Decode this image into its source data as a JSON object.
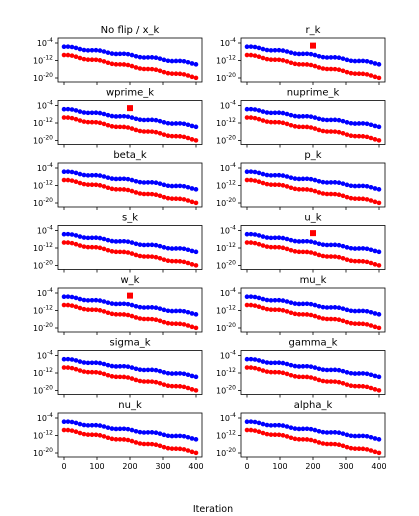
{
  "figure": {
    "xlabel": "Iteration"
  },
  "chart_data": [
    {
      "type": "scatter",
      "title": "No flip / x_k",
      "xlim": [
        0,
        400
      ],
      "ylim": [
        -20,
        -4
      ],
      "yscale": "log10",
      "yticks": [
        "10^-4",
        "10^-12",
        "10^-20"
      ],
      "xticks": [
        "0",
        "100",
        "200",
        "300",
        "400"
      ],
      "series": [
        {
          "color": "#0000ff",
          "x_range": [
            0,
            400
          ],
          "y_log10_range": [
            -5.7,
            -13.4
          ]
        },
        {
          "color": "#ff0000",
          "x_range": [
            0,
            400
          ],
          "y_log10_range": [
            -9.5,
            -19.6
          ]
        }
      ],
      "outlier": null
    },
    {
      "type": "scatter",
      "title": "r_k",
      "xlim": [
        0,
        400
      ],
      "ylim": [
        -20,
        -4
      ],
      "yscale": "log10",
      "yticks": [
        "10^-4",
        "10^-12",
        "10^-20"
      ],
      "xticks": [
        "0",
        "100",
        "200",
        "300",
        "400"
      ],
      "series": [
        {
          "color": "#0000ff",
          "x_range": [
            0,
            400
          ],
          "y_log10_range": [
            -5.7,
            -13.4
          ]
        },
        {
          "color": "#ff0000",
          "x_range": [
            0,
            400
          ],
          "y_log10_range": [
            -9.5,
            -19.6
          ]
        }
      ],
      "outlier": {
        "x": 200,
        "y_log10": -5.2,
        "color": "#ff0000"
      }
    },
    {
      "type": "scatter",
      "title": "wprime_k",
      "xlim": [
        0,
        400
      ],
      "ylim": [
        -20,
        -4
      ],
      "yscale": "log10",
      "yticks": [
        "10^-4",
        "10^-12",
        "10^-20"
      ],
      "xticks": [
        "0",
        "100",
        "200",
        "300",
        "400"
      ],
      "series": [
        {
          "color": "#0000ff",
          "x_range": [
            0,
            400
          ],
          "y_log10_range": [
            -5.7,
            -13.4
          ]
        },
        {
          "color": "#ff0000",
          "x_range": [
            0,
            400
          ],
          "y_log10_range": [
            -9.5,
            -19.6
          ]
        }
      ],
      "outlier": {
        "x": 200,
        "y_log10": -5.2,
        "color": "#ff0000"
      }
    },
    {
      "type": "scatter",
      "title": "nuprime_k",
      "xlim": [
        0,
        400
      ],
      "ylim": [
        -20,
        -4
      ],
      "yscale": "log10",
      "yticks": [
        "10^-4",
        "10^-12",
        "10^-20"
      ],
      "xticks": [
        "0",
        "100",
        "200",
        "300",
        "400"
      ],
      "series": [
        {
          "color": "#0000ff",
          "x_range": [
            0,
            400
          ],
          "y_log10_range": [
            -5.7,
            -13.4
          ]
        },
        {
          "color": "#ff0000",
          "x_range": [
            0,
            400
          ],
          "y_log10_range": [
            -9.5,
            -19.6
          ]
        }
      ],
      "outlier": null
    },
    {
      "type": "scatter",
      "title": "beta_k",
      "xlim": [
        0,
        400
      ],
      "ylim": [
        -20,
        -4
      ],
      "yscale": "log10",
      "yticks": [
        "10^-4",
        "10^-12",
        "10^-20"
      ],
      "xticks": [
        "0",
        "100",
        "200",
        "300",
        "400"
      ],
      "series": [
        {
          "color": "#0000ff",
          "x_range": [
            0,
            400
          ],
          "y_log10_range": [
            -5.7,
            -13.4
          ]
        },
        {
          "color": "#ff0000",
          "x_range": [
            0,
            400
          ],
          "y_log10_range": [
            -9.5,
            -19.6
          ]
        }
      ],
      "outlier": null
    },
    {
      "type": "scatter",
      "title": "p_k",
      "xlim": [
        0,
        400
      ],
      "ylim": [
        -20,
        -4
      ],
      "yscale": "log10",
      "yticks": [
        "10^-4",
        "10^-12",
        "10^-20"
      ],
      "xticks": [
        "0",
        "100",
        "200",
        "300",
        "400"
      ],
      "series": [
        {
          "color": "#0000ff",
          "x_range": [
            0,
            400
          ],
          "y_log10_range": [
            -5.7,
            -13.4
          ]
        },
        {
          "color": "#ff0000",
          "x_range": [
            0,
            400
          ],
          "y_log10_range": [
            -9.5,
            -19.6
          ]
        }
      ],
      "outlier": null
    },
    {
      "type": "scatter",
      "title": "s_k",
      "xlim": [
        0,
        400
      ],
      "ylim": [
        -20,
        -4
      ],
      "yscale": "log10",
      "yticks": [
        "10^-4",
        "10^-12",
        "10^-20"
      ],
      "xticks": [
        "0",
        "100",
        "200",
        "300",
        "400"
      ],
      "series": [
        {
          "color": "#0000ff",
          "x_range": [
            0,
            400
          ],
          "y_log10_range": [
            -5.7,
            -13.4
          ]
        },
        {
          "color": "#ff0000",
          "x_range": [
            0,
            400
          ],
          "y_log10_range": [
            -9.5,
            -19.6
          ]
        }
      ],
      "outlier": null
    },
    {
      "type": "scatter",
      "title": "u_k",
      "xlim": [
        0,
        400
      ],
      "ylim": [
        -20,
        -4
      ],
      "yscale": "log10",
      "yticks": [
        "10^-4",
        "10^-12",
        "10^-20"
      ],
      "xticks": [
        "0",
        "100",
        "200",
        "300",
        "400"
      ],
      "series": [
        {
          "color": "#0000ff",
          "x_range": [
            0,
            400
          ],
          "y_log10_range": [
            -5.7,
            -13.4
          ]
        },
        {
          "color": "#ff0000",
          "x_range": [
            0,
            400
          ],
          "y_log10_range": [
            -9.5,
            -19.6
          ]
        }
      ],
      "outlier": {
        "x": 200,
        "y_log10": -5.2,
        "color": "#ff0000"
      }
    },
    {
      "type": "scatter",
      "title": "w_k",
      "xlim": [
        0,
        400
      ],
      "ylim": [
        -20,
        -4
      ],
      "yscale": "log10",
      "yticks": [
        "10^-4",
        "10^-12",
        "10^-20"
      ],
      "xticks": [
        "0",
        "100",
        "200",
        "300",
        "400"
      ],
      "series": [
        {
          "color": "#0000ff",
          "x_range": [
            0,
            400
          ],
          "y_log10_range": [
            -5.7,
            -13.4
          ]
        },
        {
          "color": "#ff0000",
          "x_range": [
            0,
            400
          ],
          "y_log10_range": [
            -9.5,
            -19.6
          ]
        }
      ],
      "outlier": {
        "x": 200,
        "y_log10": -5.2,
        "color": "#ff0000"
      }
    },
    {
      "type": "scatter",
      "title": "mu_k",
      "xlim": [
        0,
        400
      ],
      "ylim": [
        -20,
        -4
      ],
      "yscale": "log10",
      "yticks": [
        "10^-4",
        "10^-12",
        "10^-20"
      ],
      "xticks": [
        "0",
        "100",
        "200",
        "300",
        "400"
      ],
      "series": [
        {
          "color": "#0000ff",
          "x_range": [
            0,
            400
          ],
          "y_log10_range": [
            -5.7,
            -13.4
          ]
        },
        {
          "color": "#ff0000",
          "x_range": [
            0,
            400
          ],
          "y_log10_range": [
            -9.5,
            -19.6
          ]
        }
      ],
      "outlier": null
    },
    {
      "type": "scatter",
      "title": "sigma_k",
      "xlim": [
        0,
        400
      ],
      "ylim": [
        -20,
        -4
      ],
      "yscale": "log10",
      "yticks": [
        "10^-4",
        "10^-12",
        "10^-20"
      ],
      "xticks": [
        "0",
        "100",
        "200",
        "300",
        "400"
      ],
      "series": [
        {
          "color": "#0000ff",
          "x_range": [
            0,
            400
          ],
          "y_log10_range": [
            -5.7,
            -13.4
          ]
        },
        {
          "color": "#ff0000",
          "x_range": [
            0,
            400
          ],
          "y_log10_range": [
            -9.5,
            -19.6
          ]
        }
      ],
      "outlier": null
    },
    {
      "type": "scatter",
      "title": "gamma_k",
      "xlim": [
        0,
        400
      ],
      "ylim": [
        -20,
        -4
      ],
      "yscale": "log10",
      "yticks": [
        "10^-4",
        "10^-12",
        "10^-20"
      ],
      "xticks": [
        "0",
        "100",
        "200",
        "300",
        "400"
      ],
      "series": [
        {
          "color": "#0000ff",
          "x_range": [
            0,
            400
          ],
          "y_log10_range": [
            -5.7,
            -13.4
          ]
        },
        {
          "color": "#ff0000",
          "x_range": [
            0,
            400
          ],
          "y_log10_range": [
            -9.5,
            -19.6
          ]
        }
      ],
      "outlier": null
    },
    {
      "type": "scatter",
      "title": "nu_k",
      "xlim": [
        0,
        400
      ],
      "ylim": [
        -20,
        -4
      ],
      "yscale": "log10",
      "yticks": [
        "10^-4",
        "10^-12",
        "10^-20"
      ],
      "xticks": [
        "0",
        "100",
        "200",
        "300",
        "400"
      ],
      "series": [
        {
          "color": "#0000ff",
          "x_range": [
            0,
            400
          ],
          "y_log10_range": [
            -5.7,
            -13.4
          ]
        },
        {
          "color": "#ff0000",
          "x_range": [
            0,
            400
          ],
          "y_log10_range": [
            -9.5,
            -19.6
          ]
        }
      ],
      "outlier": null
    },
    {
      "type": "scatter",
      "title": "alpha_k",
      "xlim": [
        0,
        400
      ],
      "ylim": [
        -20,
        -4
      ],
      "yscale": "log10",
      "yticks": [
        "10^-4",
        "10^-12",
        "10^-20"
      ],
      "xticks": [
        "0",
        "100",
        "200",
        "300",
        "400"
      ],
      "series": [
        {
          "color": "#0000ff",
          "x_range": [
            0,
            400
          ],
          "y_log10_range": [
            -5.7,
            -13.4
          ]
        },
        {
          "color": "#ff0000",
          "x_range": [
            0,
            400
          ],
          "y_log10_range": [
            -9.5,
            -19.6
          ]
        }
      ],
      "outlier": null
    }
  ]
}
